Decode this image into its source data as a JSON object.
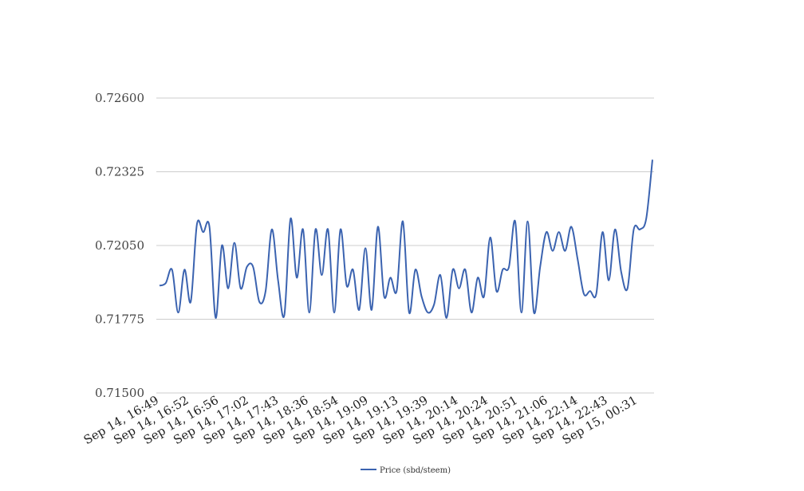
{
  "chart_data": {
    "type": "line",
    "title": "",
    "xlabel": "",
    "ylabel": "",
    "ylim": [
      0.715,
      0.726
    ],
    "y_ticks": [
      "0.71500",
      "0.71775",
      "0.72050",
      "0.72325",
      "0.72600"
    ],
    "y_tick_values": [
      0.715,
      0.71775,
      0.7205,
      0.72325,
      0.726
    ],
    "x_tick_labels": [
      "Sep 14, 16:49",
      "Sep 14, 16:52",
      "Sep 14, 16:56",
      "Sep 14, 17:02",
      "Sep 14, 17:43",
      "Sep 14, 18:36",
      "Sep 14, 18:54",
      "Sep 14, 19:09",
      "Sep 14, 19:13",
      "Sep 14, 19:39",
      "Sep 14, 20:14",
      "Sep 14, 20:24",
      "Sep 14, 20:51",
      "Sep 14, 21:06",
      "Sep 14, 22:14",
      "Sep 14, 22:43",
      "Sep 15, 00:31"
    ],
    "grid": true,
    "legend_position": "bottom",
    "series": [
      {
        "name": "Price (sbd/steem)",
        "color": "#3b63b0",
        "values": [
          0.719,
          0.7191,
          0.7196,
          0.718,
          0.7196,
          0.7184,
          0.7213,
          0.721,
          0.7212,
          0.7178,
          0.7205,
          0.7189,
          0.7206,
          0.7189,
          0.7197,
          0.7197,
          0.7184,
          0.7188,
          0.7211,
          0.7192,
          0.7179,
          0.7215,
          0.7193,
          0.7211,
          0.718,
          0.7211,
          0.7194,
          0.7211,
          0.718,
          0.7211,
          0.719,
          0.7196,
          0.7181,
          0.7204,
          0.7181,
          0.7212,
          0.7186,
          0.7193,
          0.7188,
          0.7214,
          0.718,
          0.7196,
          0.7186,
          0.718,
          0.7183,
          0.7194,
          0.7178,
          0.7196,
          0.7189,
          0.7196,
          0.718,
          0.7193,
          0.7186,
          0.7208,
          0.7188,
          0.7196,
          0.7197,
          0.7214,
          0.718,
          0.7214,
          0.718,
          0.7197,
          0.721,
          0.7203,
          0.721,
          0.7203,
          0.7212,
          0.72,
          0.7187,
          0.7188,
          0.7187,
          0.721,
          0.7192,
          0.7211,
          0.7195,
          0.7189,
          0.7211,
          0.7211,
          0.7215,
          0.7237
        ]
      }
    ]
  }
}
